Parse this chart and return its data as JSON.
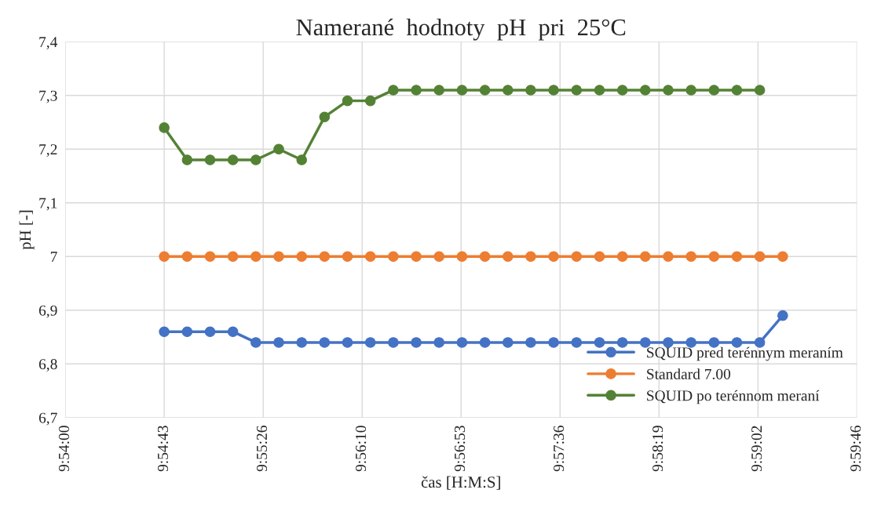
{
  "chart_data": {
    "type": "line",
    "title": "Namerané  hodnoty  pH  pri  25°C",
    "xlabel": "čas [H:M:S]",
    "ylabel": "pH [-]",
    "x": [
      9.912,
      9.91478,
      9.91756,
      9.92033,
      9.92311,
      9.92589,
      9.92867,
      9.93144,
      9.93422,
      9.937,
      9.93978,
      9.94256,
      9.94533,
      9.94811,
      9.95089,
      9.95367,
      9.95644,
      9.95922,
      9.962,
      9.96478,
      9.96756,
      9.97033,
      9.97311,
      9.97589,
      9.97867,
      9.98144,
      9.98422,
      9.987
    ],
    "series": [
      {
        "name": "SQUID pred terénnym meraním",
        "color": "#4472c4",
        "values": [
          6.86,
          6.86,
          6.86,
          6.86,
          6.84,
          6.84,
          6.84,
          6.84,
          6.84,
          6.84,
          6.84,
          6.84,
          6.84,
          6.84,
          6.84,
          6.84,
          6.84,
          6.84,
          6.84,
          6.84,
          6.84,
          6.84,
          6.84,
          6.84,
          6.84,
          6.84,
          6.84,
          6.89
        ]
      },
      {
        "name": "Standard 7.00",
        "color": "#ed7d31",
        "values": [
          7,
          7,
          7,
          7,
          7,
          7,
          7,
          7,
          7,
          7,
          7,
          7,
          7,
          7,
          7,
          7,
          7,
          7,
          7,
          7,
          7,
          7,
          7,
          7,
          7,
          7,
          7,
          7
        ]
      },
      {
        "name": "SQUID po terénnom meraní",
        "color": "#548235",
        "values": [
          7.24,
          7.18,
          7.18,
          7.18,
          7.18,
          7.2,
          7.18,
          7.26,
          7.29,
          7.29,
          7.31,
          7.31,
          7.31,
          7.31,
          7.31,
          7.31,
          7.31,
          7.31,
          7.31,
          7.31,
          7.31,
          7.31,
          7.31,
          7.31,
          7.31,
          7.31,
          7.31,
          null
        ]
      }
    ],
    "xlim": [
      9.9,
      9.996
    ],
    "xticks": [
      {
        "value": 9.9,
        "label": "9:54:00"
      },
      {
        "value": 9.912,
        "label": "9:54:43"
      },
      {
        "value": 9.924,
        "label": "9:55:26"
      },
      {
        "value": 9.936,
        "label": "9:56:10"
      },
      {
        "value": 9.948,
        "label": "9:56:53"
      },
      {
        "value": 9.96,
        "label": "9:57:36"
      },
      {
        "value": 9.972,
        "label": "9:58:19"
      },
      {
        "value": 9.984,
        "label": "9:59:02"
      },
      {
        "value": 9.996,
        "label": "9:59:46"
      }
    ],
    "ylim": [
      6.7,
      7.4
    ],
    "yticks": [
      {
        "value": 6.7,
        "label": "6,7"
      },
      {
        "value": 6.8,
        "label": "6,8"
      },
      {
        "value": 6.9,
        "label": "6,9"
      },
      {
        "value": 7,
        "label": "7"
      },
      {
        "value": 7.1,
        "label": "7,1"
      },
      {
        "value": 7.2,
        "label": "7,2"
      },
      {
        "value": 7.3,
        "label": "7,3"
      },
      {
        "value": 7.4,
        "label": "7,4"
      }
    ],
    "grid": true,
    "legend": "bottom right",
    "marker": "circle",
    "line_style": "solid"
  }
}
